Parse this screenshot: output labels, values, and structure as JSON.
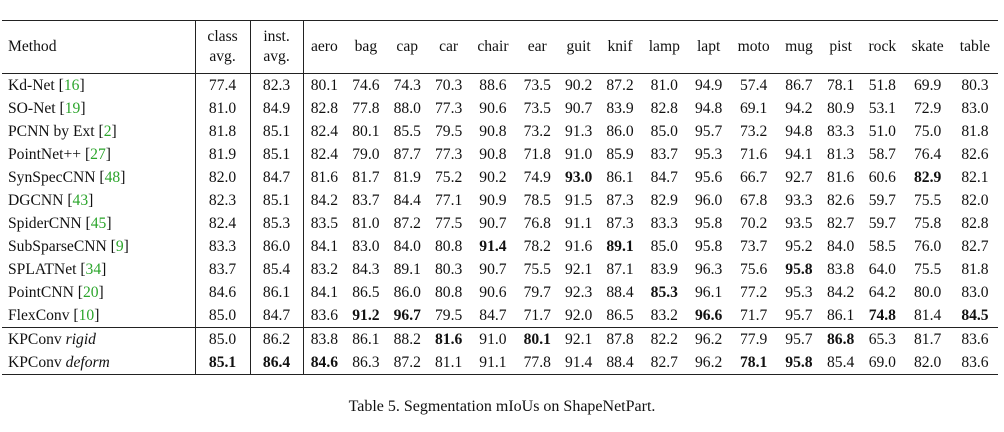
{
  "table": {
    "header": {
      "method": "Method",
      "class_avg": [
        "class",
        "avg."
      ],
      "inst_avg": [
        "inst.",
        "avg."
      ],
      "categories": [
        "aero",
        "bag",
        "cap",
        "car",
        "chair",
        "ear",
        "guit",
        "knif",
        "lamp",
        "lapt",
        "moto",
        "mug",
        "pist",
        "rock",
        "skate",
        "table"
      ]
    },
    "groups": [
      {
        "rows": [
          {
            "name": "Kd-Net",
            "cite": "16",
            "class_avg": "77.4",
            "inst_avg": "82.3",
            "values": [
              "80.1",
              "74.6",
              "74.3",
              "70.3",
              "88.6",
              "73.5",
              "90.2",
              "87.2",
              "81.0",
              "94.9",
              "57.4",
              "86.7",
              "78.1",
              "51.8",
              "69.9",
              "80.3"
            ],
            "bold": []
          },
          {
            "name": "SO-Net",
            "cite": "19",
            "class_avg": "81.0",
            "inst_avg": "84.9",
            "values": [
              "82.8",
              "77.8",
              "88.0",
              "77.3",
              "90.6",
              "73.5",
              "90.7",
              "83.9",
              "82.8",
              "94.8",
              "69.1",
              "94.2",
              "80.9",
              "53.1",
              "72.9",
              "83.0"
            ],
            "bold": []
          },
          {
            "name": "PCNN by Ext",
            "cite": "2",
            "class_avg": "81.8",
            "inst_avg": "85.1",
            "values": [
              "82.4",
              "80.1",
              "85.5",
              "79.5",
              "90.8",
              "73.2",
              "91.3",
              "86.0",
              "85.0",
              "95.7",
              "73.2",
              "94.8",
              "83.3",
              "51.0",
              "75.0",
              "81.8"
            ],
            "bold": []
          },
          {
            "name": "PointNet++",
            "cite": "27",
            "class_avg": "81.9",
            "inst_avg": "85.1",
            "values": [
              "82.4",
              "79.0",
              "87.7",
              "77.3",
              "90.8",
              "71.8",
              "91.0",
              "85.9",
              "83.7",
              "95.3",
              "71.6",
              "94.1",
              "81.3",
              "58.7",
              "76.4",
              "82.6"
            ],
            "bold": []
          },
          {
            "name": "SynSpecCNN",
            "cite": "48",
            "class_avg": "82.0",
            "inst_avg": "84.7",
            "values": [
              "81.6",
              "81.7",
              "81.9",
              "75.2",
              "90.2",
              "74.9",
              "93.0",
              "86.1",
              "84.7",
              "95.6",
              "66.7",
              "92.7",
              "81.6",
              "60.6",
              "82.9",
              "82.1"
            ],
            "bold": [
              6,
              14
            ]
          },
          {
            "name": "DGCNN",
            "cite": "43",
            "class_avg": "82.3",
            "inst_avg": "85.1",
            "values": [
              "84.2",
              "83.7",
              "84.4",
              "77.1",
              "90.9",
              "78.5",
              "91.5",
              "87.3",
              "82.9",
              "96.0",
              "67.8",
              "93.3",
              "82.6",
              "59.7",
              "75.5",
              "82.0"
            ],
            "bold": []
          },
          {
            "name": "SpiderCNN",
            "cite": "45",
            "class_avg": "82.4",
            "inst_avg": "85.3",
            "values": [
              "83.5",
              "81.0",
              "87.2",
              "77.5",
              "90.7",
              "76.8",
              "91.1",
              "87.3",
              "83.3",
              "95.8",
              "70.2",
              "93.5",
              "82.7",
              "59.7",
              "75.8",
              "82.8"
            ],
            "bold": []
          },
          {
            "name": "SubSparseCNN",
            "cite": "9",
            "class_avg": "83.3",
            "inst_avg": "86.0",
            "values": [
              "84.1",
              "83.0",
              "84.0",
              "80.8",
              "91.4",
              "78.2",
              "91.6",
              "89.1",
              "85.0",
              "95.8",
              "73.7",
              "95.2",
              "84.0",
              "58.5",
              "76.0",
              "82.7"
            ],
            "bold": [
              4,
              7
            ]
          },
          {
            "name": "SPLATNet",
            "cite": "34",
            "class_avg": "83.7",
            "inst_avg": "85.4",
            "values": [
              "83.2",
              "84.3",
              "89.1",
              "80.3",
              "90.7",
              "75.5",
              "92.1",
              "87.1",
              "83.9",
              "96.3",
              "75.6",
              "95.8",
              "83.8",
              "64.0",
              "75.5",
              "81.8"
            ],
            "bold": [
              11
            ]
          },
          {
            "name": "PointCNN",
            "cite": "20",
            "class_avg": "84.6",
            "inst_avg": "86.1",
            "values": [
              "84.1",
              "86.5",
              "86.0",
              "80.8",
              "90.6",
              "79.7",
              "92.3",
              "88.4",
              "85.3",
              "96.1",
              "77.2",
              "95.3",
              "84.2",
              "64.2",
              "80.0",
              "83.0"
            ],
            "bold": [
              8
            ]
          },
          {
            "name": "FlexConv",
            "cite": "10",
            "class_avg": "85.0",
            "inst_avg": "84.7",
            "values": [
              "83.6",
              "91.2",
              "96.7",
              "79.5",
              "84.7",
              "71.7",
              "92.0",
              "86.5",
              "83.2",
              "96.6",
              "71.7",
              "95.7",
              "86.1",
              "74.8",
              "81.4",
              "84.5"
            ],
            "bold": [
              1,
              2,
              9,
              13,
              15
            ]
          }
        ]
      },
      {
        "rows": [
          {
            "name": "KPConv",
            "variant": "rigid",
            "class_avg": "85.0",
            "inst_avg": "86.2",
            "values": [
              "83.8",
              "86.1",
              "88.2",
              "81.6",
              "91.0",
              "80.1",
              "92.1",
              "87.8",
              "82.2",
              "96.2",
              "77.9",
              "95.7",
              "86.8",
              "65.3",
              "81.7",
              "83.6"
            ],
            "bold": [
              3,
              5,
              12
            ]
          },
          {
            "name": "KPConv",
            "variant": "deform",
            "class_avg": "85.1",
            "inst_avg": "86.4",
            "values": [
              "84.6",
              "86.3",
              "87.2",
              "81.1",
              "91.1",
              "77.8",
              "91.4",
              "88.4",
              "82.7",
              "96.2",
              "78.1",
              "95.8",
              "85.4",
              "69.0",
              "82.0",
              "83.6"
            ],
            "bold": [
              0,
              10,
              11
            ],
            "bold_avgs": true
          }
        ]
      }
    ]
  },
  "caption": "Table 5. Segmentation mIoUs on ShapeNetPart."
}
